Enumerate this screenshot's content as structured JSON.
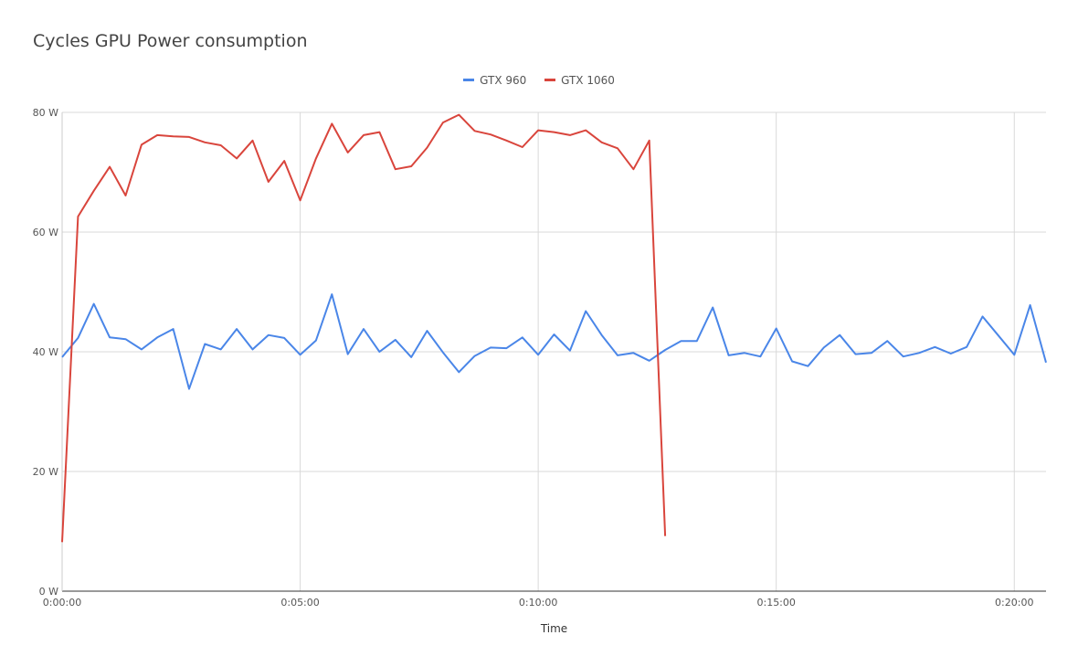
{
  "chart_data": {
    "type": "line",
    "title": "Cycles GPU Power consumption",
    "xlabel": "Time",
    "ylabel": "",
    "ylim": [
      0,
      80
    ],
    "xlim_seconds": [
      0,
      1240
    ],
    "y_ticks": [
      "0 W",
      "20 W",
      "40 W",
      "60 W",
      "80 W"
    ],
    "y_tick_values": [
      0,
      20,
      40,
      60,
      80
    ],
    "x_ticks": [
      "0:00:00",
      "0:05:00",
      "0:10:00",
      "0:15:00",
      "0:20:00"
    ],
    "x_tick_values": [
      0,
      300,
      600,
      900,
      1200
    ],
    "legend_position": "top-center",
    "grid": true,
    "series": [
      {
        "name": "GTX 960",
        "color": "#4a86e8",
        "x": [
          0,
          20,
          40,
          60,
          80,
          100,
          120,
          140,
          160,
          180,
          200,
          220,
          240,
          260,
          280,
          300,
          320,
          340,
          360,
          380,
          400,
          420,
          440,
          460,
          480,
          500,
          520,
          540,
          560,
          580,
          600,
          620,
          640,
          660,
          680,
          700,
          720,
          740,
          760,
          780,
          800,
          820,
          840,
          860,
          880,
          900,
          920,
          940,
          960,
          980,
          1000,
          1020,
          1040,
          1060,
          1080,
          1100,
          1120,
          1140,
          1160,
          1180,
          1200,
          1220,
          1240
        ],
        "y": [
          39.1,
          42.3,
          48.0,
          42.4,
          42.1,
          40.4,
          42.4,
          43.8,
          33.8,
          41.3,
          40.4,
          43.8,
          40.4,
          42.8,
          42.3,
          39.5,
          41.9,
          49.6,
          39.6,
          43.8,
          40.0,
          42.0,
          39.1,
          43.5,
          39.9,
          36.6,
          39.3,
          40.7,
          40.6,
          42.4,
          39.5,
          42.9,
          40.2,
          46.8,
          42.8,
          39.4,
          39.8,
          38.5,
          40.3,
          41.8,
          41.8,
          47.4,
          39.4,
          39.8,
          39.2,
          43.9,
          38.4,
          37.6,
          40.7,
          42.8,
          39.6,
          39.8,
          41.8,
          39.2,
          39.8,
          40.8,
          39.7,
          40.8,
          45.9,
          42.7,
          39.5,
          47.8,
          38.2
        ]
      },
      {
        "name": "GTX 1060",
        "color": "#d9453c",
        "x": [
          0,
          20,
          40,
          60,
          80,
          100,
          120,
          140,
          160,
          180,
          200,
          220,
          240,
          260,
          280,
          300,
          320,
          340,
          360,
          380,
          400,
          420,
          440,
          460,
          480,
          500,
          520,
          540,
          560,
          580,
          600,
          620,
          640,
          660,
          680,
          700,
          720,
          740,
          760
        ],
        "y": [
          8.2,
          62.6,
          66.9,
          70.9,
          66.1,
          74.6,
          76.2,
          76.0,
          75.9,
          75.0,
          74.5,
          72.3,
          75.3,
          68.4,
          71.9,
          65.3,
          72.3,
          78.1,
          73.3,
          76.2,
          76.7,
          70.5,
          71.0,
          74.1,
          78.3,
          79.6,
          76.9,
          76.3,
          75.3,
          74.2,
          77.0,
          76.7,
          76.2,
          77.0,
          75.0,
          74.0,
          70.5,
          75.3,
          9.2
        ]
      }
    ]
  }
}
